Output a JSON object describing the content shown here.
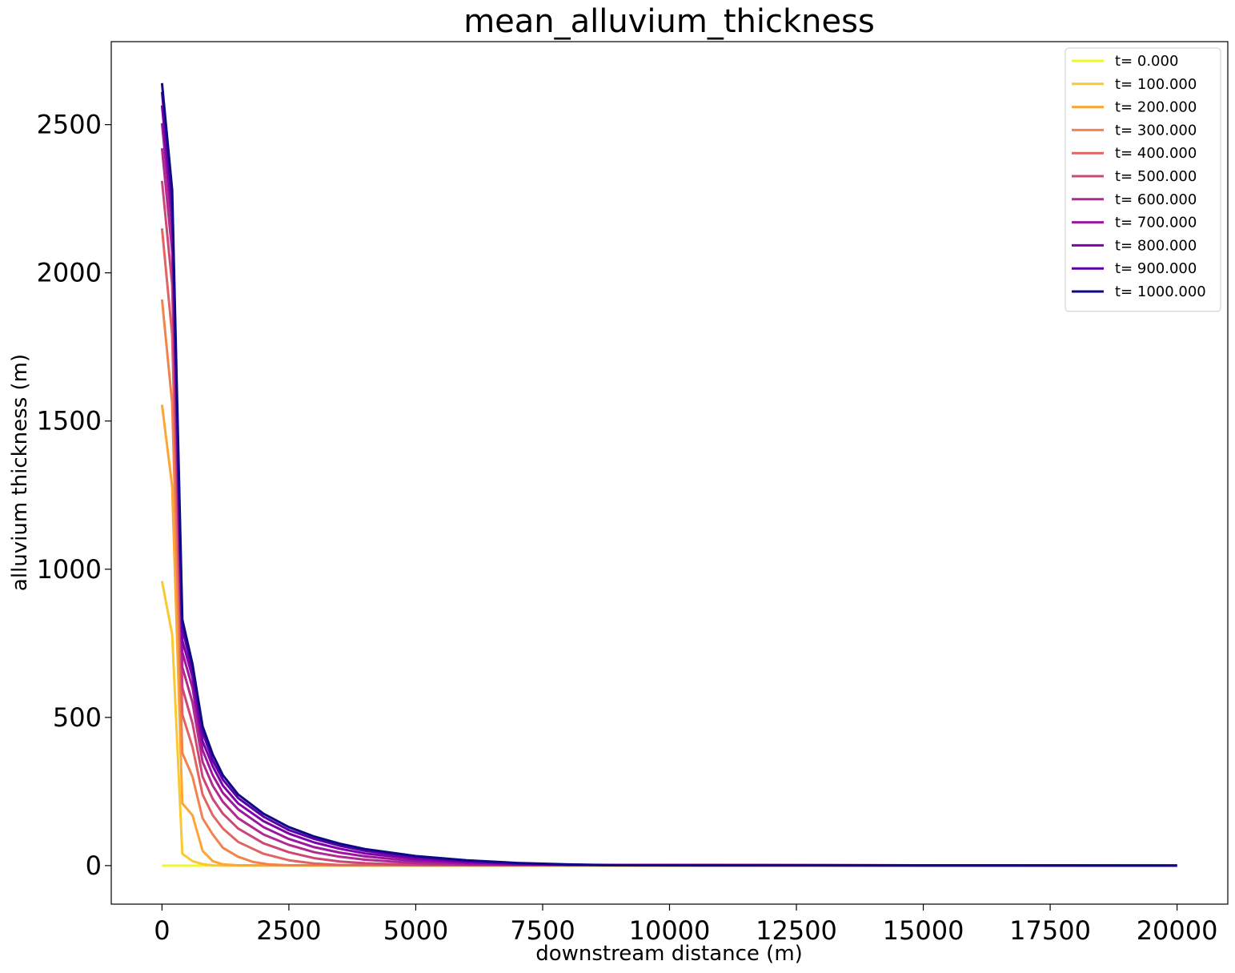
{
  "chart_data": {
    "type": "line",
    "title": "mean_alluvium_thickness",
    "xlabel": "downstream distance (m)",
    "ylabel": "alluvium thickness (m)",
    "xlim": [
      -1000,
      21000
    ],
    "ylim": [
      -130,
      2780
    ],
    "xticks": [
      0,
      2500,
      5000,
      7500,
      10000,
      12500,
      15000,
      17500,
      20000
    ],
    "xtick_labels": [
      "0",
      "2500",
      "5000",
      "7500",
      "10000",
      "12500",
      "15000",
      "17500",
      "20000"
    ],
    "yticks": [
      0,
      500,
      1000,
      1500,
      2000,
      2500
    ],
    "ytick_labels": [
      "0",
      "500",
      "1000",
      "1500",
      "2000",
      "2500"
    ],
    "grid": false,
    "legend_position": "top-right",
    "series": [
      {
        "name": "t= 0.000",
        "color": "#f0f921",
        "x": [
          0,
          200,
          400,
          600,
          800,
          1000,
          20000
        ],
        "y": [
          0,
          0,
          0,
          0,
          0,
          0,
          0
        ]
      },
      {
        "name": "t= 100.000",
        "color": "#f8c932",
        "x": [
          0,
          200,
          400,
          600,
          800,
          1000,
          1200,
          20000
        ],
        "y": [
          960,
          780,
          40,
          15,
          5,
          1,
          0,
          0
        ]
      },
      {
        "name": "t= 200.000",
        "color": "#fca636",
        "x": [
          0,
          200,
          400,
          600,
          800,
          1000,
          1200,
          1500,
          20000
        ],
        "y": [
          1555,
          1280,
          210,
          170,
          50,
          15,
          4,
          1,
          0
        ]
      },
      {
        "name": "t= 300.000",
        "color": "#f2844b",
        "x": [
          0,
          200,
          400,
          600,
          800,
          1000,
          1200,
          1500,
          1800,
          2100,
          2500,
          20000
        ],
        "y": [
          1910,
          1560,
          380,
          300,
          160,
          105,
          60,
          30,
          12,
          4,
          1,
          0
        ]
      },
      {
        "name": "t= 400.000",
        "color": "#e16462",
        "x": [
          0,
          200,
          400,
          600,
          800,
          1000,
          1200,
          1500,
          2000,
          2500,
          3000,
          3500,
          20000
        ],
        "y": [
          2150,
          1790,
          510,
          400,
          240,
          170,
          125,
          80,
          40,
          18,
          7,
          2,
          0
        ]
      },
      {
        "name": "t= 500.000",
        "color": "#cc4778",
        "x": [
          0,
          200,
          400,
          600,
          800,
          1000,
          1200,
          1500,
          2000,
          2500,
          3000,
          3500,
          4000,
          5000,
          20000
        ],
        "y": [
          2310,
          1960,
          600,
          480,
          300,
          225,
          175,
          125,
          75,
          45,
          25,
          14,
          8,
          2,
          0
        ]
      },
      {
        "name": "t= 600.000",
        "color": "#b12a90",
        "x": [
          0,
          200,
          400,
          600,
          800,
          1000,
          1200,
          1500,
          2000,
          2500,
          3000,
          3500,
          4000,
          5000,
          6000,
          20000
        ],
        "y": [
          2420,
          2070,
          670,
          550,
          350,
          270,
          215,
          160,
          105,
          70,
          45,
          30,
          20,
          8,
          3,
          0
        ]
      },
      {
        "name": "t= 700.000",
        "color": "#9c179e",
        "x": [
          0,
          200,
          400,
          600,
          800,
          1000,
          1200,
          1500,
          2000,
          2500,
          3000,
          3500,
          4000,
          5000,
          6000,
          7000,
          20000
        ],
        "y": [
          2505,
          2150,
          720,
          600,
          390,
          305,
          245,
          190,
          130,
          90,
          62,
          44,
          31,
          15,
          7,
          3,
          0
        ]
      },
      {
        "name": "t= 800.000",
        "color": "#7e03a8",
        "x": [
          0,
          200,
          400,
          600,
          800,
          1000,
          1200,
          1500,
          2000,
          2500,
          3000,
          3500,
          4000,
          5000,
          6000,
          7000,
          8000,
          20000
        ],
        "y": [
          2565,
          2200,
          760,
          635,
          420,
          335,
          270,
          210,
          150,
          108,
          78,
          57,
          41,
          22,
          11,
          5,
          2,
          0
        ]
      },
      {
        "name": "t= 900.000",
        "color": "#5c01a6",
        "x": [
          0,
          200,
          400,
          600,
          800,
          1000,
          1200,
          1500,
          2000,
          2500,
          3000,
          3500,
          4000,
          5000,
          6000,
          7000,
          8000,
          9000,
          20000
        ],
        "y": [
          2610,
          2240,
          800,
          660,
          450,
          355,
          290,
          228,
          165,
          120,
          90,
          67,
          50,
          28,
          15,
          8,
          3,
          1,
          0
        ]
      },
      {
        "name": "t= 1000.000",
        "color": "#0d0887",
        "x": [
          0,
          200,
          400,
          600,
          800,
          1000,
          1200,
          1500,
          2000,
          2500,
          3000,
          3500,
          4000,
          5000,
          6000,
          7000,
          8000,
          9000,
          20000
        ],
        "y": [
          2640,
          2280,
          830,
          680,
          470,
          375,
          305,
          240,
          175,
          130,
          98,
          74,
          56,
          32,
          18,
          9,
          4,
          1,
          0
        ]
      }
    ]
  }
}
